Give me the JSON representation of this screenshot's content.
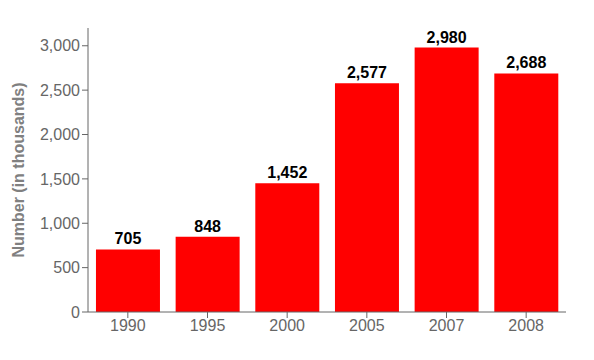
{
  "chart_data": {
    "type": "bar",
    "categories": [
      "1990",
      "1995",
      "2000",
      "2005",
      "2007",
      "2008"
    ],
    "values": [
      705,
      848,
      1452,
      2577,
      2980,
      2688
    ],
    "value_labels": [
      "705",
      "848",
      "1,452",
      "2,577",
      "2,980",
      "2,688"
    ],
    "data_labels": true,
    "color": "#FF0000",
    "ylabel": "Number (in thousands)",
    "ylim": [
      0,
      3200
    ],
    "yticks": [
      0,
      500,
      {
        "value": 1000,
        "label": "1,000"
      },
      {
        "value": 1500,
        "label": "1,500"
      },
      {
        "value": 2000,
        "label": "2,000"
      },
      {
        "value": 2500,
        "label": "2,500"
      },
      {
        "value": 3000,
        "label": "3,000"
      }
    ],
    "grid": false
  }
}
